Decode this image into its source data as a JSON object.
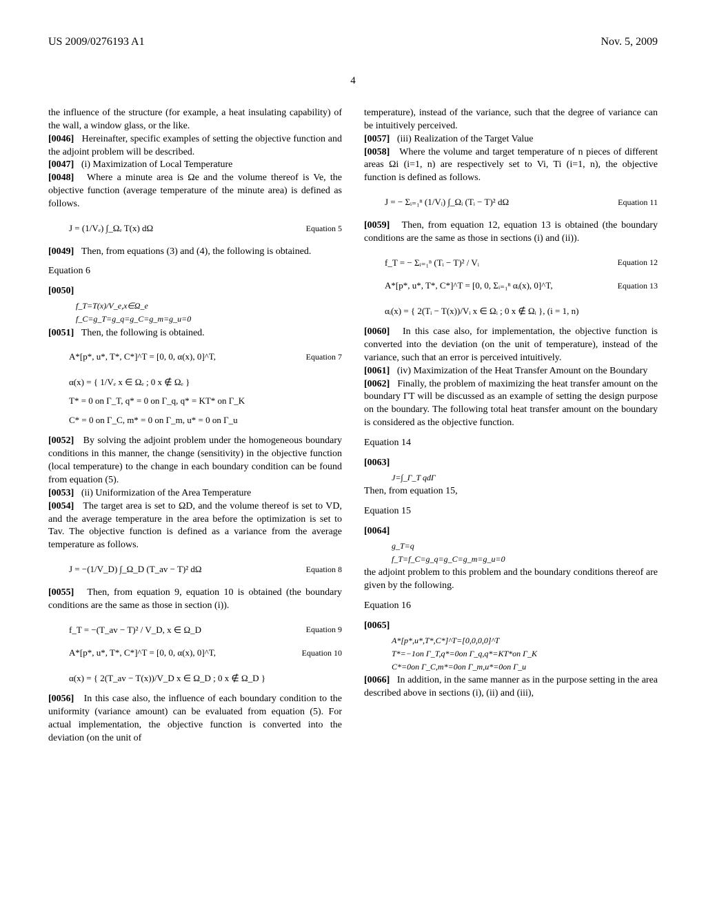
{
  "header": {
    "pub_number": "US 2009/0276193 A1",
    "date": "Nov. 5, 2009"
  },
  "page_number": "4",
  "left": {
    "p1": "the influence of the structure (for example, a heat insulating capability) of the wall, a window glass, or the like.",
    "p46_num": "[0046]",
    "p46": "Hereinafter, specific examples of setting the objective function and the adjoint problem will be described.",
    "p47_num": "[0047]",
    "p47": "(i) Maximization of Local Temperature",
    "p48_num": "[0048]",
    "p48": "Where a minute area is Ωe and the volume thereof is Ve, the objective function (average temperature of the minute area) is defined as follows.",
    "eq5": "J = (1/Vₑ) ∫_Ωₑ T(x) dΩ",
    "eq5_label": "Equation 5",
    "p49_num": "[0049]",
    "p49": "Then, from equations (3) and (4), the following is obtained.",
    "eq6_label": "Equation 6",
    "p50_num": "[0050]",
    "eq6a": "f_T=T(x)/V_e,x∈Ω_e",
    "eq6b": "f_C=g_T=g_q=g_C=g_m=g_u=0",
    "p51_num": "[0051]",
    "p51": "Then, the following is obtained.",
    "eq7a": "A*[p*, u*, T*, C*]^T = [0, 0, α(x), 0]^T,",
    "eq7_label": "Equation 7",
    "eq7b": "α(x) = { 1/Vₑ  x ∈ Ωₑ ; 0  x ∉ Ωₑ }",
    "eq7c": "T* = 0 on Γ_T, q* = 0 on Γ_q, q* = KT* on Γ_K",
    "eq7d": "C* = 0 on Γ_C, m* = 0 on Γ_m, u* = 0 on Γ_u",
    "p52_num": "[0052]",
    "p52": "By solving the adjoint problem under the homogeneous boundary conditions in this manner, the change (sensitivity) in the objective function (local temperature) to the change in each boundary condition can be found from equation (5).",
    "p53_num": "[0053]",
    "p53": "(ii) Uniformization of the Area Temperature",
    "p54_num": "[0054]",
    "p54": "The target area is set to ΩD, and the volume thereof is set to VD, and the average temperature in the area before the optimization is set to Tav. The objective function is defined as a variance from the average temperature as follows.",
    "eq8": "J = −(1/V_D) ∫_Ω_D (T_av − T)² dΩ",
    "eq8_label": "Equation 8",
    "p55_num": "[0055]",
    "p55": "Then, from equation 9, equation 10 is obtained (the boundary conditions are the same as those in section (i)).",
    "eq9": "f_T = −(T_av − T)² / V_D, x ∈ Ω_D",
    "eq9_label": "Equation 9",
    "eq10a": "A*[p*, u*, T*, C*]^T = [0, 0, α(x), 0]^T,",
    "eq10_label": "Equation 10",
    "eq10b": "α(x) = { 2(T_av − T(x))/V_D  x ∈ Ω_D ; 0  x ∉ Ω_D }",
    "p56_num": "[0056]",
    "p56": "In this case also, the influence of each boundary condition to the uniformity (variance amount) can be evaluated from equation (5). For actual implementation, the objective function is converted into the deviation (on the unit of"
  },
  "right": {
    "p1": "temperature), instead of the variance, such that the degree of variance can be intuitively perceived.",
    "p57_num": "[0057]",
    "p57": "(iii) Realization of the Target Value",
    "p58_num": "[0058]",
    "p58": "Where the volume and target temperature of n pieces of different areas Ωi (i=1, n) are respectively set to Vi, Ti (i=1, n), the objective function is defined as follows.",
    "eq11": "J = − Σᵢ₌₁ⁿ (1/Vᵢ) ∫_Ωᵢ (Tᵢ − T)² dΩ",
    "eq11_label": "Equation 11",
    "p59_num": "[0059]",
    "p59": "Then, from equation 12, equation 13 is obtained (the boundary conditions are the same as those in sections (i) and (ii)).",
    "eq12": "f_T = − Σᵢ₌₁ⁿ (Tᵢ − T)² / Vᵢ",
    "eq12_label": "Equation 12",
    "eq13a": "A*[p*, u*, T*, C*]^T = [0, 0, Σᵢ₌₁ⁿ αᵢ(x), 0]^T,",
    "eq13_label": "Equation 13",
    "eq13b": "αᵢ(x) = { 2(Tᵢ − T(x))/Vᵢ  x ∈ Ωᵢ ; 0  x ∉ Ωᵢ }, (i = 1, n)",
    "p60_num": "[0060]",
    "p60": "In this case also, for implementation, the objective function is converted into the deviation (on the unit of temperature), instead of the variance, such that an error is perceived intuitively.",
    "p61_num": "[0061]",
    "p61": "(iv) Maximization of the Heat Transfer Amount on the Boundary",
    "p62_num": "[0062]",
    "p62": "Finally, the problem of maximizing the heat transfer amount on the boundary ΓT will be discussed as an example of setting the design purpose on the boundary. The following total heat transfer amount on the boundary is considered as the objective function.",
    "eq14_label": "Equation 14",
    "p63_num": "[0063]",
    "eq14": "J=∫_Γ_T qdΓ",
    "eq15_pre": "Then, from equation 15,",
    "eq15_label": "Equation 15",
    "p64_num": "[0064]",
    "eq15a": "g_T=q",
    "eq15b": "f_T=f_C=g_q=g_C=g_m=g_u=0",
    "p_adjoint": "the adjoint problem to this problem and the boundary conditions thereof are given by the following.",
    "eq16_label": "Equation 16",
    "p65_num": "[0065]",
    "eq16a": "A*[p*,u*,T*,C*]^T=[0,0,0,0]^T",
    "eq16b": "T*=−1on Γ_T,q*=0on Γ_q,q*=KT*on Γ_K",
    "eq16c": "C*=0on Γ_C,m*=0on Γ_m,u*=0on Γ_u",
    "p66_num": "[0066]",
    "p66": "In addition, in the same manner as in the purpose setting in the area described above in sections (i), (ii) and (iii),"
  }
}
